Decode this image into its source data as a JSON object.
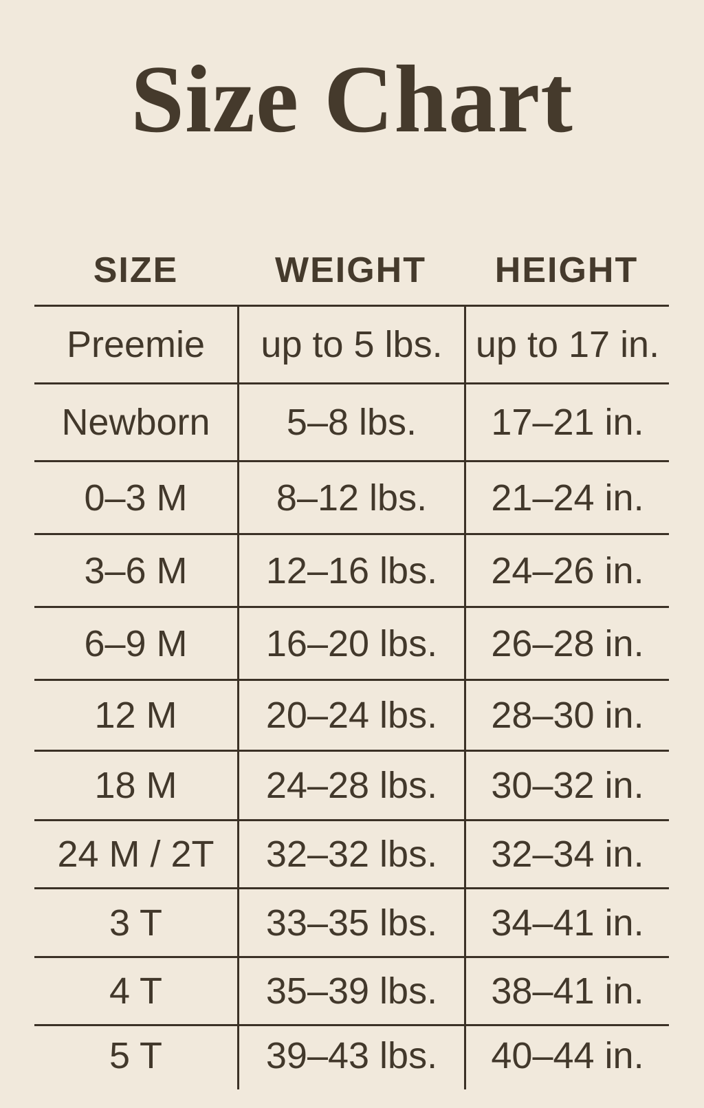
{
  "title": "Size Chart",
  "colors": {
    "background": "#f1e9dc",
    "text": "#42382b",
    "line": "#3b3126",
    "title": "#453a2c"
  },
  "chart_data": {
    "type": "table",
    "title": "Size Chart",
    "columns": [
      "SIZE",
      "WEIGHT",
      "HEIGHT"
    ],
    "rows": [
      {
        "size": "Preemie",
        "weight": "up to 5 lbs.",
        "height": "up to 17 in."
      },
      {
        "size": "Newborn",
        "weight": "5–8 lbs.",
        "height": "17–21 in."
      },
      {
        "size": "0–3 M",
        "weight": "8–12 lbs.",
        "height": "21–24 in."
      },
      {
        "size": "3–6 M",
        "weight": "12–16 lbs.",
        "height": "24–26 in."
      },
      {
        "size": "6–9 M",
        "weight": "16–20 lbs.",
        "height": "26–28 in."
      },
      {
        "size": "12 M",
        "weight": "20–24 lbs.",
        "height": "28–30 in."
      },
      {
        "size": "18 M",
        "weight": "24–28 lbs.",
        "height": "30–32 in."
      },
      {
        "size": "24 M / 2T",
        "weight": "32–32 lbs.",
        "height": "32–34 in."
      },
      {
        "size": "3 T",
        "weight": "33–35 lbs.",
        "height": "34–41 in."
      },
      {
        "size": "4 T",
        "weight": "35–39 lbs.",
        "height": "38–41 in."
      },
      {
        "size": "5 T",
        "weight": "39–43 lbs.",
        "height": "40–44 in."
      }
    ],
    "layout": {
      "grid": "horizontal rules between rows, vertical rules between columns, no outer border, no rule below last row"
    }
  }
}
